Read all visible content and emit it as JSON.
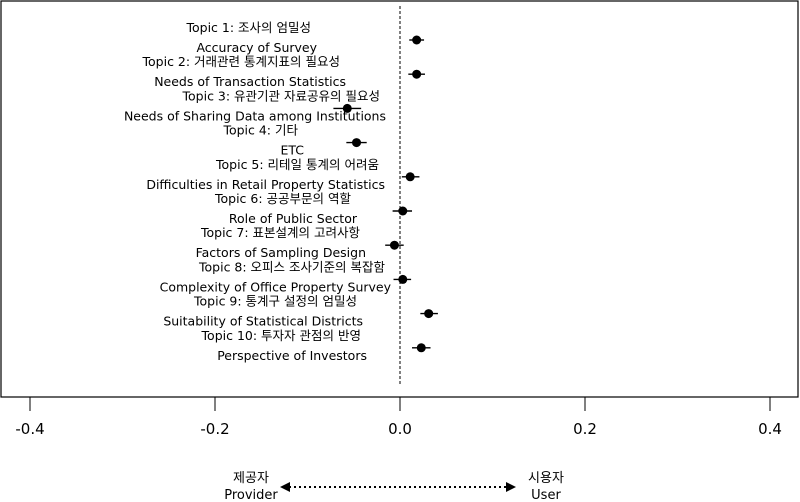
{
  "chart_data": {
    "type": "scatter",
    "title": "",
    "xlabel": "",
    "ylabel": "",
    "xlim": [
      -0.4,
      0.4
    ],
    "xticks": [
      "-0.4",
      "-0.2",
      "0.0",
      "0.2",
      "0.4"
    ],
    "reference_line": 0.0,
    "grid": false,
    "points": [
      {
        "label_ko": "Topic 1: 조사의 엄밀성",
        "label_en": "Accuracy of Survey",
        "value": 0.018,
        "ci": [
          0.01,
          0.026
        ]
      },
      {
        "label_ko": "Topic 2: 거래관련 통계지표의 필요성",
        "label_en": "Needs of Transaction Statistics",
        "value": 0.018,
        "ci": [
          0.009,
          0.027
        ]
      },
      {
        "label_ko": "Topic 3:  유관기관 자료공유의 필요성",
        "label_en": "Needs of Sharing Data among Institutions",
        "value": -0.057,
        "ci": [
          -0.072,
          -0.042
        ]
      },
      {
        "label_ko": "Topic 4: 기타",
        "label_en": "ETC",
        "value": -0.047,
        "ci": [
          -0.058,
          -0.036
        ]
      },
      {
        "label_ko": "Topic 5: 리테일 통계의 어려움",
        "label_en": "Difficulties in Retail Property Statistics",
        "value": 0.011,
        "ci": [
          0.002,
          0.021
        ]
      },
      {
        "label_ko": "Topic 6: 공공부문의 역할",
        "label_en": "Role of Public Sector",
        "value": 0.003,
        "ci": [
          -0.008,
          0.013
        ]
      },
      {
        "label_ko": "Topic 7: 표본설계의 고려사항",
        "label_en": "Factors of Sampling Design",
        "value": -0.006,
        "ci": [
          -0.016,
          0.004
        ]
      },
      {
        "label_ko": "Topic 8: 오피스 조사기준의 복잡함",
        "label_en": "Complexity of Office Property Survey",
        "value": 0.003,
        "ci": [
          -0.007,
          0.012
        ]
      },
      {
        "label_ko": "Topic 9: 통계구 설정의 엄밀성",
        "label_en": "Suitability of Statistical Districts",
        "value": 0.031,
        "ci": [
          0.022,
          0.041
        ]
      },
      {
        "label_ko": "Topic 10: 투자자 관점의 반영",
        "label_en": "Perspective of Investors",
        "value": 0.023,
        "ci": [
          0.013,
          0.033
        ]
      }
    ]
  },
  "direction": {
    "left_ko": "제공자",
    "left_en": "Provider",
    "right_ko": "시용자",
    "right_en": "User"
  }
}
